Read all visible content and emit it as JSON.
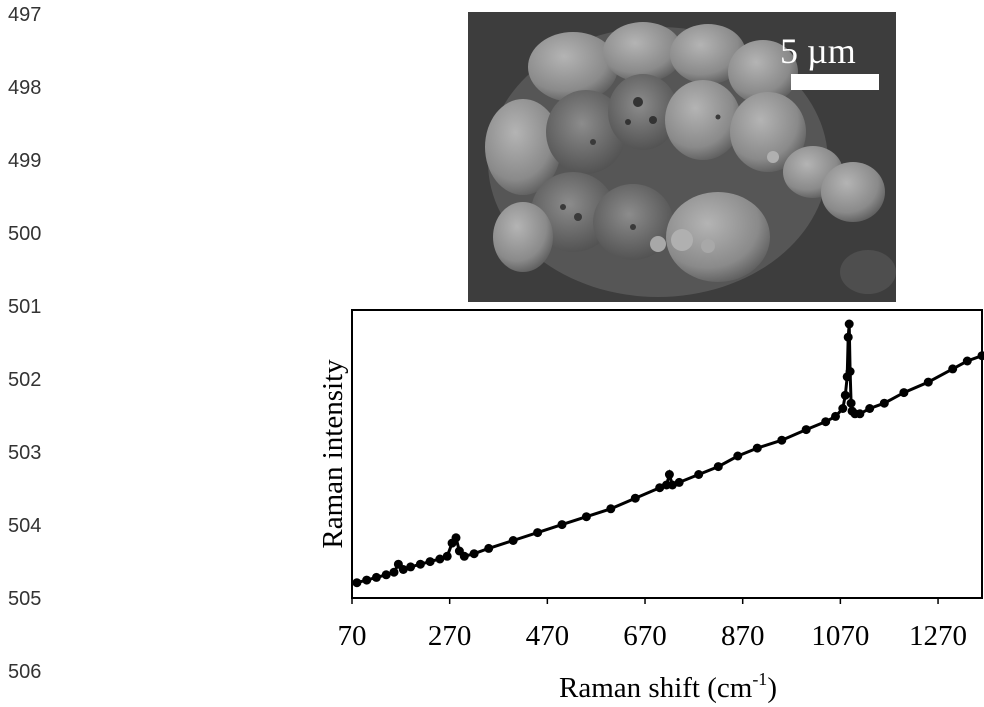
{
  "line_numbers": [
    "497",
    "498",
    "499",
    "500",
    "501",
    "502",
    "503",
    "504",
    "505",
    "506"
  ],
  "sem_image": {
    "scale_bar_label": "5 µm",
    "colors": {
      "background": "#3f3f3f",
      "particle": "#8f8f8f"
    }
  },
  "chart_data": {
    "type": "scatter",
    "xlabel": "Raman shift (cm-1)",
    "xlabel_main": "Raman shift (cm",
    "xlabel_sup": "-1",
    "xlabel_end": ")",
    "ylabel": "Raman intensity",
    "xlim": [
      70,
      1360
    ],
    "ylim": [
      0,
      1
    ],
    "xticks": [
      70,
      270,
      470,
      670,
      870,
      1070,
      1270
    ],
    "tick_labels": [
      "70",
      "270",
      "470",
      "670",
      "870",
      "1070",
      "1270"
    ],
    "y_tick_labels_shown": false,
    "grid": false,
    "legend": "none",
    "marker": "filled circle, connected",
    "series": [
      {
        "x": [
          80,
          100,
          120,
          140,
          156,
          165,
          175,
          190,
          210,
          230,
          250,
          265,
          275,
          283,
          290,
          300,
          320,
          350,
          400,
          450,
          500,
          550,
          600,
          650,
          700,
          714,
          720,
          726,
          740,
          780,
          820,
          860,
          900,
          950,
          1000,
          1040,
          1060,
          1075,
          1080,
          1084,
          1086,
          1088,
          1090,
          1092,
          1094,
          1100,
          1110,
          1130,
          1160,
          1200,
          1250,
          1300,
          1330,
          1360
        ],
        "y": [
          0.02,
          0.03,
          0.04,
          0.05,
          0.06,
          0.09,
          0.07,
          0.08,
          0.09,
          0.1,
          0.11,
          0.12,
          0.17,
          0.19,
          0.14,
          0.12,
          0.13,
          0.15,
          0.18,
          0.21,
          0.24,
          0.27,
          0.3,
          0.34,
          0.38,
          0.39,
          0.43,
          0.39,
          0.4,
          0.43,
          0.46,
          0.5,
          0.53,
          0.56,
          0.6,
          0.63,
          0.65,
          0.68,
          0.73,
          0.8,
          0.95,
          1.0,
          0.82,
          0.7,
          0.67,
          0.66,
          0.66,
          0.68,
          0.7,
          0.74,
          0.78,
          0.83,
          0.86,
          0.88
        ]
      }
    ]
  }
}
